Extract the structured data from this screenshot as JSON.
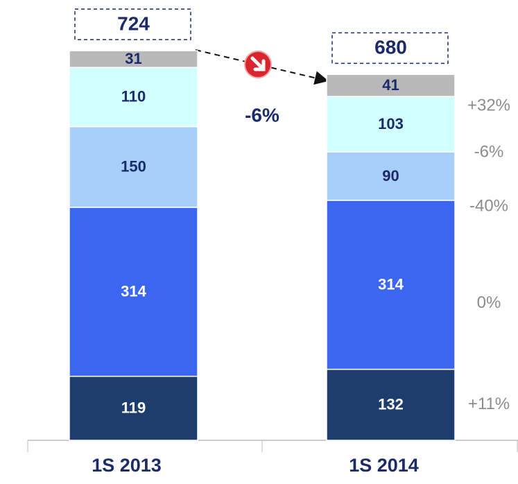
{
  "chart_data": {
    "type": "stacked_bar",
    "categories": [
      "1S 2013",
      "1S 2014"
    ],
    "series": [
      {
        "color": "#1c3d6e",
        "values": [
          119,
          132
        ]
      },
      {
        "color": "#3b66f2",
        "values": [
          314,
          314
        ]
      },
      {
        "color": "#a8cff8",
        "values": [
          150,
          90
        ]
      },
      {
        "color": "#d2ffff",
        "values": [
          110,
          103
        ]
      },
      {
        "color": "#b9b9b9",
        "values": [
          31,
          41
        ]
      }
    ],
    "totals": [
      724,
      680
    ],
    "total_change": {
      "value": -6,
      "label": "-6%"
    },
    "changes": {
      "values": [
        11,
        0,
        -40,
        -6,
        32
      ],
      "value_labels": [
        "+11%",
        "0%",
        "-40%",
        "-6%",
        "+32%"
      ]
    }
  }
}
